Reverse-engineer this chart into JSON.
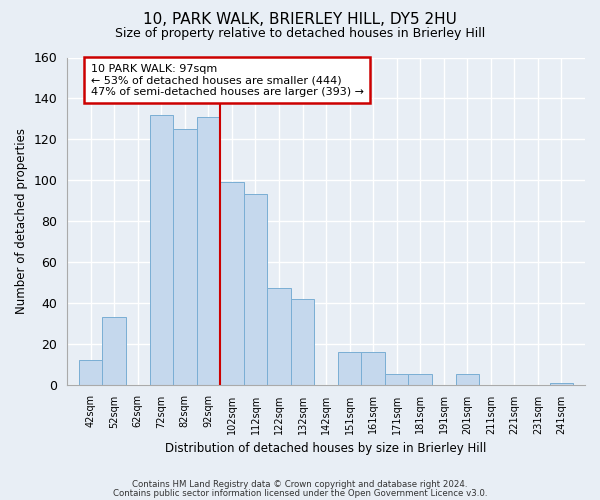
{
  "title": "10, PARK WALK, BRIERLEY HILL, DY5 2HU",
  "subtitle": "Size of property relative to detached houses in Brierley Hill",
  "xlabel": "Distribution of detached houses by size in Brierley Hill",
  "ylabel": "Number of detached properties",
  "bar_labels": [
    "42sqm",
    "52sqm",
    "62sqm",
    "72sqm",
    "82sqm",
    "92sqm",
    "102sqm",
    "112sqm",
    "122sqm",
    "132sqm",
    "142sqm",
    "151sqm",
    "161sqm",
    "171sqm",
    "181sqm",
    "191sqm",
    "201sqm",
    "211sqm",
    "221sqm",
    "231sqm",
    "241sqm"
  ],
  "bar_values": [
    12,
    33,
    0,
    132,
    125,
    131,
    99,
    93,
    47,
    42,
    0,
    16,
    16,
    5,
    5,
    0,
    5,
    0,
    0,
    0,
    1
  ],
  "bar_color": "#c5d8ed",
  "bar_edge_color": "#7aaed4",
  "annotation_title": "10 PARK WALK: 97sqm",
  "annotation_line1": "← 53% of detached houses are smaller (444)",
  "annotation_line2": "47% of semi-detached houses are larger (393) →",
  "annotation_box_color": "#ffffff",
  "annotation_box_edge_color": "#cc0000",
  "vline_color": "#cc0000",
  "ylim": [
    0,
    160
  ],
  "yticks": [
    0,
    20,
    40,
    60,
    80,
    100,
    120,
    140,
    160
  ],
  "footnote1": "Contains HM Land Registry data © Crown copyright and database right 2024.",
  "footnote2": "Contains public sector information licensed under the Open Government Licence v3.0.",
  "background_color": "#e8eef5",
  "plot_background_color": "#e8eef5",
  "grid_color": "#ffffff"
}
